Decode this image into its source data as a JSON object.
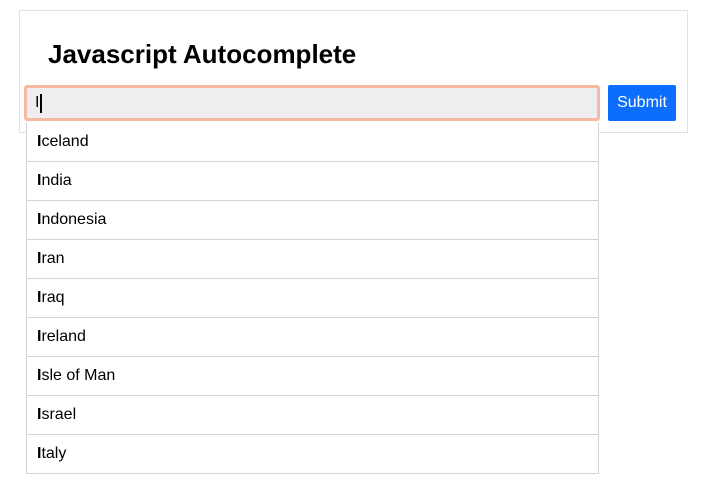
{
  "page": {
    "title": "Javascript Autocomplete"
  },
  "form": {
    "input": {
      "value": "I",
      "caret_visible": true
    },
    "submit_label": "Submit"
  },
  "autocomplete": {
    "typed_prefix": "I",
    "items": [
      {
        "match": "I",
        "rest": "celand",
        "full": "Iceland"
      },
      {
        "match": "I",
        "rest": "ndia",
        "full": "India"
      },
      {
        "match": "I",
        "rest": "ndonesia",
        "full": "Indonesia"
      },
      {
        "match": "I",
        "rest": "ran",
        "full": "Iran"
      },
      {
        "match": "I",
        "rest": "raq",
        "full": "Iraq"
      },
      {
        "match": "I",
        "rest": "reland",
        "full": "Ireland"
      },
      {
        "match": "I",
        "rest": "sle of Man",
        "full": "Isle of Man"
      },
      {
        "match": "I",
        "rest": "srael",
        "full": "Israel"
      },
      {
        "match": "I",
        "rest": "taly",
        "full": "Italy"
      }
    ]
  },
  "colors": {
    "accent_blue": "#0d6efd",
    "input_focus_ring": "#f8b9a3",
    "input_background": "#eeeeee",
    "item_border": "#d4d4d4",
    "panel_border": "#e2e2e2"
  }
}
